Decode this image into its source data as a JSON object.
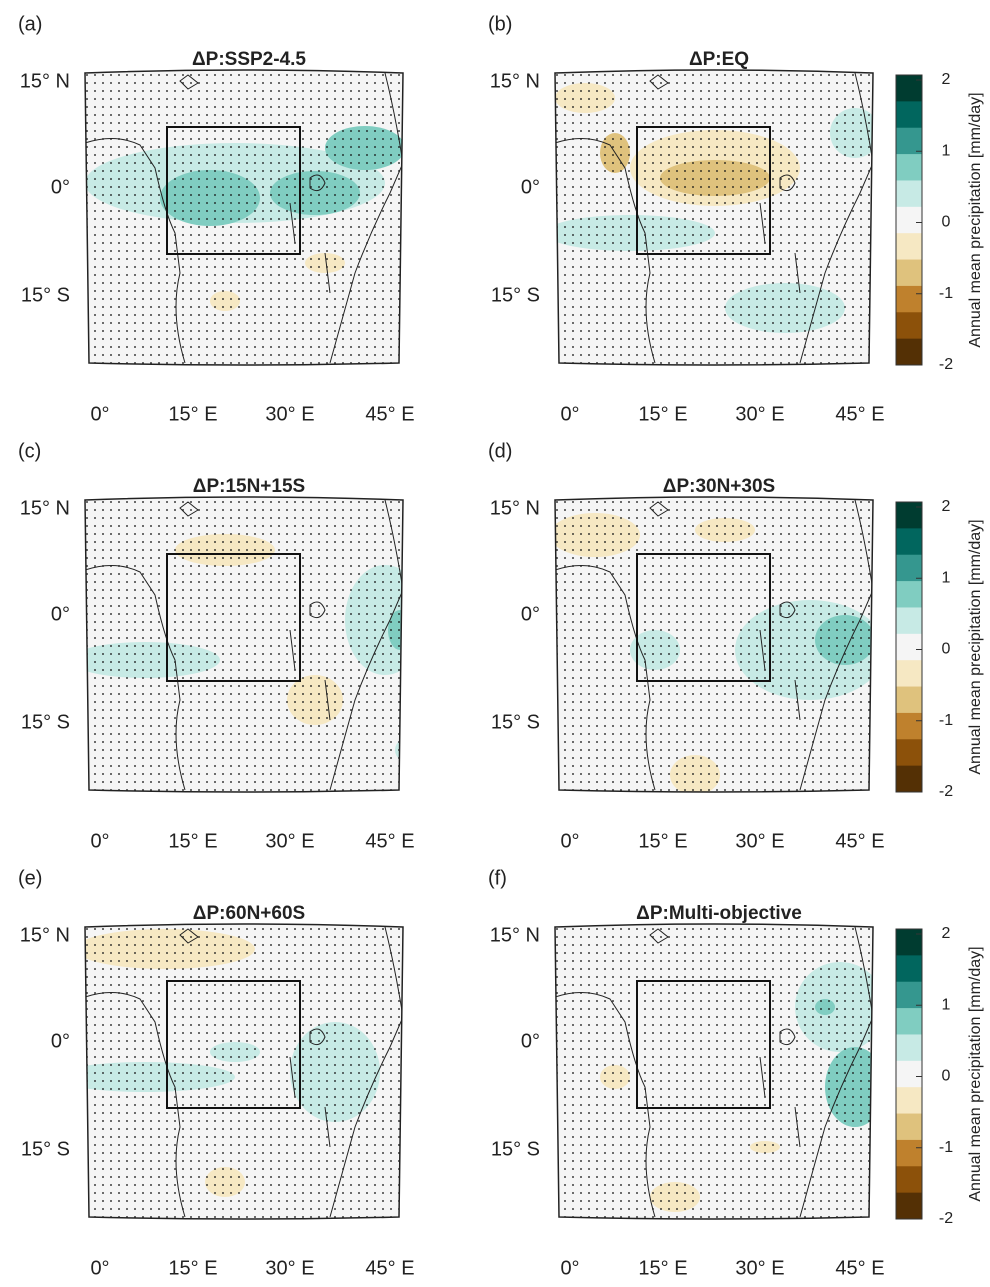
{
  "panels": [
    {
      "label": "(a)",
      "title": "ΔP:SSP2-4.5"
    },
    {
      "label": "(b)",
      "title": "ΔP:EQ"
    },
    {
      "label": "(c)",
      "title": "ΔP:15N+15S"
    },
    {
      "label": "(d)",
      "title": "ΔP:30N+30S"
    },
    {
      "label": "(e)",
      "title": "ΔP:60N+60S"
    },
    {
      "label": "(f)",
      "title": "ΔP:Multi-objective"
    }
  ],
  "lat_labels": [
    "15° N",
    "0°",
    "15° S"
  ],
  "lon_labels": [
    "0°",
    "15° E",
    "30° E",
    "45° E"
  ],
  "colorbar": {
    "label": "Annual mean precipitation [mm/day]",
    "ticks": [
      2,
      1,
      0,
      -1,
      -2
    ],
    "colors": [
      "#003c30",
      "#01665e",
      "#35978f",
      "#80cdc1",
      "#c7eae5",
      "#f5f5f5",
      "#f6e8c3",
      "#dfc27d",
      "#bf812d",
      "#8c510a",
      "#543005"
    ]
  }
}
